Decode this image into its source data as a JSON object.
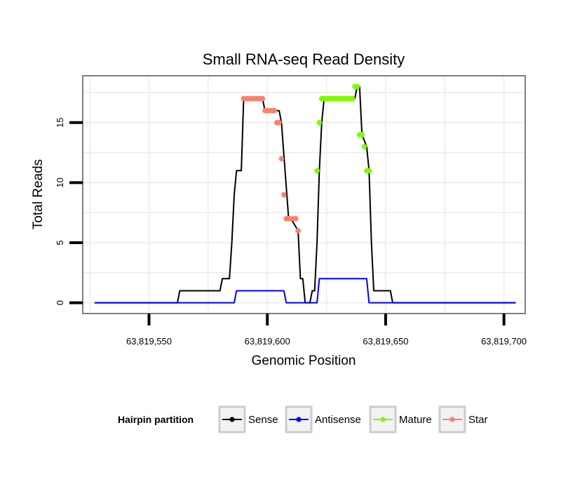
{
  "chart_data": {
    "type": "line",
    "title": "Small RNA-seq Read Density",
    "xlabel": "Genomic Position",
    "ylabel": "Total Reads",
    "xlim": [
      63819522,
      63819709
    ],
    "ylim": [
      -0.9,
      18.9
    ],
    "x_ticks": [
      63819550,
      63819600,
      63819650,
      63819700
    ],
    "x_tick_labels": [
      "63,819,550",
      "63,819,600",
      "63,819,650",
      "63,819,700"
    ],
    "y_ticks": [
      0,
      5,
      10,
      15
    ],
    "y_tick_labels": [
      "0",
      "5",
      "10",
      "15"
    ],
    "grid": true,
    "legend": {
      "title": "Hairpin partition",
      "position": "bottom",
      "entries": [
        {
          "label": "Sense",
          "color": "#000000"
        },
        {
          "label": "Antisense",
          "color": "#0000ff"
        },
        {
          "label": "Mature",
          "color": "#7cfc00"
        },
        {
          "label": "Star",
          "color": "#fa8072"
        }
      ]
    },
    "series": [
      {
        "name": "Sense",
        "color": "#000000",
        "kind": "line",
        "x": [
          63819527,
          63819562,
          63819563,
          63819580,
          63819581,
          63819584,
          63819585,
          63819586,
          63819587,
          63819589,
          63819590,
          63819598,
          63819599,
          63819605,
          63819606,
          63819609,
          63819610,
          63819613,
          63819614,
          63819615,
          63819616,
          63819617,
          63819618,
          63819619,
          63819620,
          63819621,
          63819622,
          63819623,
          63819624,
          63819637,
          63819638,
          63819639,
          63819640,
          63819642,
          63819643,
          63819644,
          63819645,
          63819652,
          63819653,
          63819654,
          63819705
        ],
        "values": [
          0,
          0,
          1,
          1,
          2,
          2,
          5,
          9,
          11,
          11,
          17,
          17,
          16,
          16,
          15,
          7,
          7,
          6,
          2,
          2,
          0,
          0,
          0,
          1,
          1,
          5,
          11,
          15,
          17,
          17,
          18,
          18,
          14,
          13,
          11,
          5,
          1,
          1,
          0,
          0,
          0
        ]
      },
      {
        "name": "Antisense",
        "color": "#0000ff",
        "kind": "line",
        "x": [
          63819527,
          63819586,
          63819587,
          63819607,
          63819608,
          63819621,
          63819622,
          63819642,
          63819643,
          63819705
        ],
        "values": [
          0,
          0,
          1,
          1,
          0,
          0,
          2,
          2,
          0,
          0
        ]
      },
      {
        "name": "Mature",
        "color": "#7cfc00",
        "kind": "points",
        "x": [
          63819621,
          63819622,
          63819623,
          63819624,
          63819625,
          63819626,
          63819627,
          63819628,
          63819629,
          63819630,
          63819631,
          63819632,
          63819633,
          63819634,
          63819635,
          63819636,
          63819637,
          63819638,
          63819639,
          63819640,
          63819641,
          63819642,
          63819643
        ],
        "values": [
          11,
          15,
          17,
          17,
          17,
          17,
          17,
          17,
          17,
          17,
          17,
          17,
          17,
          17,
          17,
          17,
          18,
          18,
          14,
          14,
          13,
          11,
          11
        ]
      },
      {
        "name": "Star",
        "color": "#fa8072",
        "kind": "points",
        "x": [
          63819590,
          63819591,
          63819592,
          63819593,
          63819594,
          63819595,
          63819596,
          63819597,
          63819598,
          63819599,
          63819600,
          63819601,
          63819602,
          63819603,
          63819604,
          63819605,
          63819606,
          63819607,
          63819608,
          63819609,
          63819610,
          63819611,
          63819612,
          63819613
        ],
        "values": [
          17,
          17,
          17,
          17,
          17,
          17,
          17,
          17,
          17,
          16,
          16,
          16,
          16,
          16,
          15,
          15,
          12,
          9,
          7,
          7,
          7,
          7,
          7,
          6
        ]
      }
    ]
  }
}
